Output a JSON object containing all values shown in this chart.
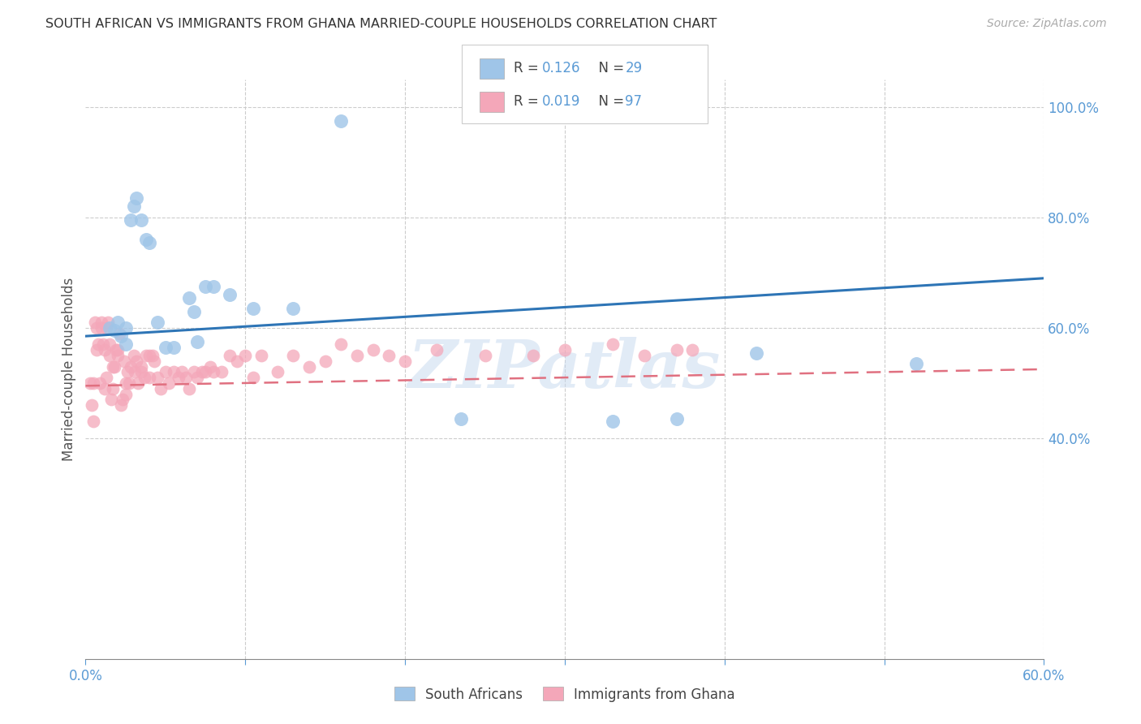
{
  "title": "SOUTH AFRICAN VS IMMIGRANTS FROM GHANA MARRIED-COUPLE HOUSEHOLDS CORRELATION CHART",
  "source": "Source: ZipAtlas.com",
  "ylabel": "Married-couple Households",
  "legend_label1": "South Africans",
  "legend_label2": "Immigrants from Ghana",
  "xlim": [
    0.0,
    60.0
  ],
  "ylim": [
    0.0,
    105.0
  ],
  "yticks": [
    40.0,
    60.0,
    80.0,
    100.0
  ],
  "ytick_labels": [
    "40.0%",
    "60.0%",
    "80.0%",
    "100.0%"
  ],
  "xticks": [
    0.0,
    10.0,
    20.0,
    30.0,
    40.0,
    50.0,
    60.0
  ],
  "xtick_labels": [
    "0.0%",
    "",
    "",
    "",
    "",
    "",
    "60.0%"
  ],
  "color_blue": "#9fc5e8",
  "color_pink": "#f4a7b9",
  "color_blue_line": "#2e75b6",
  "color_pink_line": "#e07080",
  "color_tick": "#5b9bd5",
  "color_grid": "#cccccc",
  "color_legend_text": "#5b9bd5",
  "blue_trend_x": [
    0.0,
    60.0
  ],
  "blue_trend_y": [
    58.5,
    69.0
  ],
  "pink_trend_x": [
    0.0,
    60.0
  ],
  "pink_trend_y": [
    49.5,
    52.5
  ],
  "sa_x": [
    1.5,
    1.8,
    2.0,
    2.2,
    2.5,
    2.5,
    2.8,
    3.0,
    3.2,
    3.5,
    3.8,
    4.0,
    4.5,
    5.0,
    5.5,
    6.5,
    6.8,
    7.0,
    7.5,
    8.0,
    9.0,
    10.5,
    13.0,
    16.0,
    23.5,
    33.0,
    37.0,
    42.0,
    52.0
  ],
  "sa_y": [
    60.0,
    59.5,
    61.0,
    58.5,
    60.0,
    57.0,
    79.5,
    82.0,
    83.5,
    79.5,
    76.0,
    75.5,
    61.0,
    56.5,
    56.5,
    65.5,
    63.0,
    57.5,
    67.5,
    67.5,
    66.0,
    63.5,
    63.5,
    97.5,
    43.5,
    43.0,
    43.5,
    55.5,
    53.5
  ],
  "gh_x": [
    0.3,
    0.4,
    0.5,
    0.5,
    0.6,
    0.7,
    0.7,
    0.8,
    0.9,
    1.0,
    1.0,
    1.1,
    1.2,
    1.2,
    1.3,
    1.3,
    1.4,
    1.5,
    1.5,
    1.6,
    1.7,
    1.7,
    1.8,
    1.9,
    2.0,
    2.0,
    2.1,
    2.2,
    2.3,
    2.4,
    2.5,
    2.5,
    2.6,
    2.7,
    2.8,
    3.0,
    3.1,
    3.2,
    3.3,
    3.5,
    3.5,
    3.7,
    3.8,
    4.0,
    4.0,
    4.2,
    4.3,
    4.5,
    4.7,
    5.0,
    5.2,
    5.5,
    5.8,
    6.0,
    6.3,
    6.5,
    6.8,
    7.0,
    7.3,
    7.5,
    7.8,
    8.0,
    8.5,
    9.0,
    9.5,
    10.0,
    10.5,
    11.0,
    12.0,
    13.0,
    14.0,
    15.0,
    16.0,
    17.0,
    18.0,
    19.0,
    20.0,
    22.0,
    25.0,
    28.0,
    30.0,
    33.0,
    35.0,
    37.0,
    38.0
  ],
  "gh_y": [
    50.0,
    46.0,
    43.0,
    50.0,
    61.0,
    60.0,
    56.0,
    57.0,
    50.0,
    61.0,
    60.0,
    57.0,
    49.0,
    56.0,
    51.0,
    60.0,
    61.0,
    55.0,
    57.0,
    47.0,
    53.0,
    49.0,
    53.0,
    56.0,
    56.0,
    55.0,
    59.0,
    46.0,
    47.0,
    54.0,
    50.0,
    48.0,
    52.0,
    50.0,
    53.0,
    55.0,
    52.0,
    54.0,
    50.0,
    52.0,
    53.0,
    51.0,
    55.0,
    51.0,
    55.0,
    55.0,
    54.0,
    51.0,
    49.0,
    52.0,
    50.0,
    52.0,
    51.0,
    52.0,
    51.0,
    49.0,
    52.0,
    51.0,
    52.0,
    52.0,
    53.0,
    52.0,
    52.0,
    55.0,
    54.0,
    55.0,
    51.0,
    55.0,
    52.0,
    55.0,
    53.0,
    54.0,
    57.0,
    55.0,
    56.0,
    55.0,
    54.0,
    56.0,
    55.0,
    55.0,
    56.0,
    57.0,
    55.0,
    56.0,
    56.0
  ],
  "watermark_text": "ZIPatlas",
  "watermark_color": "#c5d8ee",
  "watermark_alpha": 0.5,
  "background_color": "#ffffff",
  "title_fontsize": 11.5,
  "source_fontsize": 10,
  "tick_fontsize": 12,
  "legend_fontsize": 12
}
